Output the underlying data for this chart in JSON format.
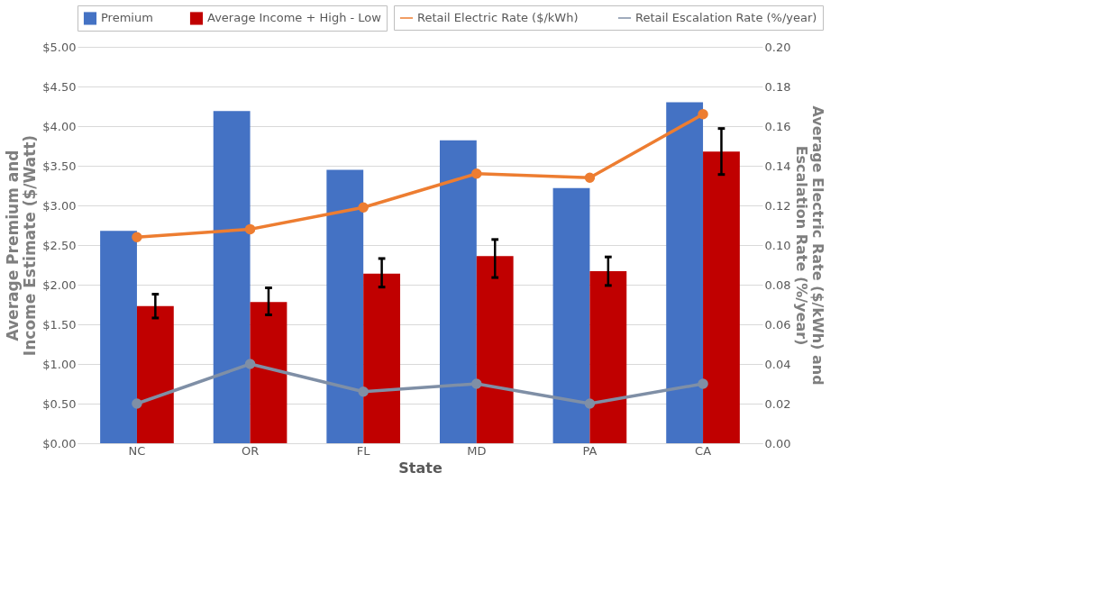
{
  "chart_data": {
    "type": "bar",
    "xlabel": "State",
    "ylabel": "Average Premium and\nIncome Estimate ($/Watt)",
    "y2label": "Average Electric Rate ($/kWh) and\nEscalation Rate (%/year)",
    "categories": [
      "NC",
      "OR",
      "FL",
      "MD",
      "PA",
      "CA"
    ],
    "series": [
      {
        "name": "Premium",
        "color": "#4472c4",
        "values": [
          2.68,
          4.19,
          3.45,
          3.82,
          3.22,
          4.3
        ]
      },
      {
        "name": "Average Income + High - Low",
        "color": "#c00000",
        "values": [
          1.73,
          1.78,
          2.14,
          2.36,
          2.17,
          3.68
        ],
        "errors": [
          [
            1.58,
            1.88
          ],
          [
            1.62,
            1.96
          ],
          [
            1.97,
            2.33
          ],
          [
            2.09,
            2.57
          ],
          [
            1.99,
            2.35
          ],
          [
            3.39,
            3.97
          ]
        ]
      },
      {
        "name": "Retail Electric Rate ($/kWh)",
        "type": "line",
        "axis": "y2",
        "color": "#ed7d31",
        "values": [
          0.104,
          0.108,
          0.119,
          0.136,
          0.134,
          0.166
        ]
      },
      {
        "name": "Retail Escalation Rate (%/year)",
        "type": "line",
        "axis": "y2",
        "color": "#7f8fa6",
        "values": [
          0.02,
          0.04,
          0.026,
          0.03,
          0.02,
          0.03
        ]
      }
    ],
    "ylim": [
      0,
      5
    ],
    "yticks": [
      {
        "value": 0,
        "label": "$0.00"
      },
      {
        "value": 0.5,
        "label": "$0.50"
      },
      {
        "value": 1,
        "label": "$1.00"
      },
      {
        "value": 1.5,
        "label": "$1.50"
      },
      {
        "value": 2,
        "label": "$2.00"
      },
      {
        "value": 2.5,
        "label": "$2.50"
      },
      {
        "value": 3,
        "label": "$3.00"
      },
      {
        "value": 3.5,
        "label": "$3.50"
      },
      {
        "value": 4,
        "label": "$4.00"
      },
      {
        "value": 4.5,
        "label": "$4.50"
      },
      {
        "value": 5,
        "label": "$5.00"
      }
    ],
    "y2lim": [
      0,
      0.2
    ],
    "y2ticks": [
      {
        "value": 0,
        "label": "0.00"
      },
      {
        "value": 0.02,
        "label": "0.02"
      },
      {
        "value": 0.04,
        "label": "0.04"
      },
      {
        "value": 0.06,
        "label": "0.06"
      },
      {
        "value": 0.08,
        "label": "0.08"
      },
      {
        "value": 0.1,
        "label": "0.10"
      },
      {
        "value": 0.12,
        "label": "0.12"
      },
      {
        "value": 0.14,
        "label": "0.14"
      },
      {
        "value": 0.16,
        "label": "0.16"
      },
      {
        "value": 0.18,
        "label": "0.18"
      },
      {
        "value": 0.2,
        "label": "0.20"
      }
    ],
    "grid": "y",
    "legend": "top",
    "marker": "circle",
    "line_style": "solid"
  }
}
